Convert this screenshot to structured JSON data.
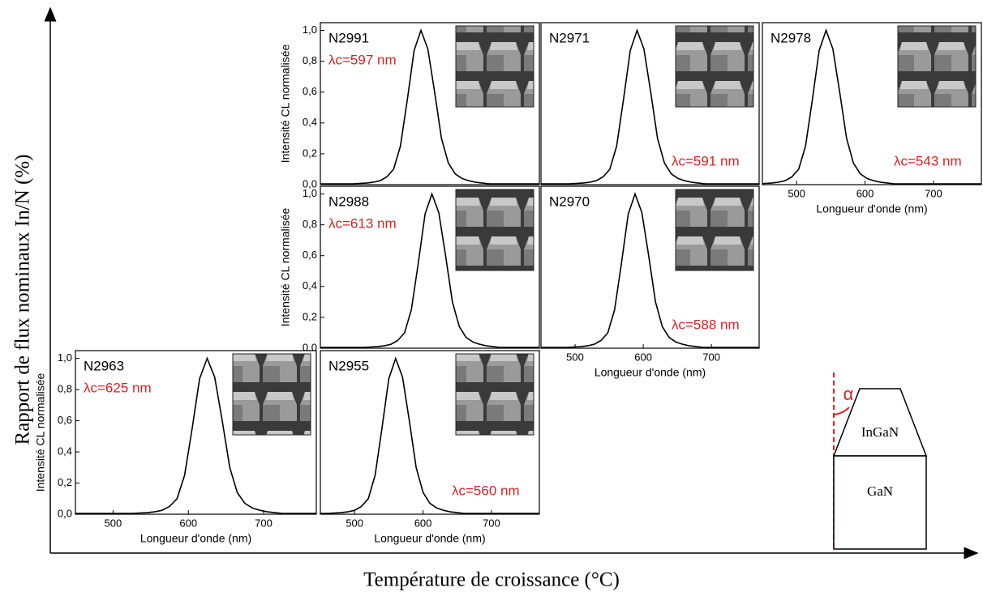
{
  "figure": {
    "x_label": "Température de croissance (°C)",
    "y_label": "Rapport de flux nominaux In/N (%)"
  },
  "diagram": {
    "top_label": "InGaN",
    "bottom_label": "GaN",
    "angle_label": "α"
  },
  "chart_data": [
    {
      "type": "line",
      "title": "N2991",
      "annotation": "λc=597 nm",
      "y_label": "Intensité CL normalisée",
      "xlim": [
        450,
        770
      ],
      "ylim": [
        0,
        1.05
      ],
      "yticks": [
        {
          "value": 0,
          "label": "0,0"
        },
        {
          "value": 0.2,
          "label": "0,2"
        },
        {
          "value": 0.4,
          "label": "0,4"
        },
        {
          "value": 0.6,
          "label": "0,6"
        },
        {
          "value": 0.8,
          "label": "0,8"
        },
        {
          "value": 1,
          "label": "1,0"
        }
      ],
      "series": [
        {
          "color": "#000000",
          "x": [
            450,
            497,
            507,
            517,
            527,
            537,
            547,
            557,
            567,
            577,
            587,
            597,
            607,
            617,
            627,
            637,
            647,
            657,
            667,
            677,
            687,
            697,
            707,
            717,
            770
          ],
          "values": [
            0.005,
            0.005,
            0.008,
            0.01,
            0.015,
            0.025,
            0.05,
            0.1,
            0.25,
            0.55,
            0.87,
            1,
            0.88,
            0.6,
            0.3,
            0.14,
            0.07,
            0.04,
            0.025,
            0.015,
            0.01,
            0.005,
            0.005,
            0.005,
            0.005
          ]
        }
      ]
    },
    {
      "type": "line",
      "title": "N2971",
      "annotation": "λc=591 nm",
      "xlim": [
        450,
        770
      ],
      "ylim": [
        0,
        1.05
      ],
      "series": [
        {
          "color": "#000000",
          "x": [
            450,
            491,
            501,
            511,
            521,
            531,
            541,
            551,
            561,
            571,
            581,
            591,
            601,
            611,
            621,
            631,
            641,
            651,
            661,
            671,
            681,
            691,
            701,
            711,
            770
          ],
          "values": [
            0.005,
            0.005,
            0.008,
            0.01,
            0.015,
            0.025,
            0.05,
            0.1,
            0.25,
            0.55,
            0.87,
            1,
            0.88,
            0.6,
            0.3,
            0.14,
            0.07,
            0.04,
            0.025,
            0.015,
            0.01,
            0.005,
            0.005,
            0.005,
            0.005
          ]
        }
      ]
    },
    {
      "type": "line",
      "title": "N2978",
      "annotation": "λc=543 nm",
      "x_label": "Longueur d'onde (nm)",
      "xlim": [
        450,
        770
      ],
      "ylim": [
        0,
        1.05
      ],
      "xticks": [
        500,
        600,
        700
      ],
      "series": [
        {
          "color": "#000000",
          "x": [
            450,
            453,
            463,
            473,
            483,
            493,
            503,
            513,
            523,
            533,
            543,
            553,
            563,
            573,
            583,
            593,
            603,
            613,
            623,
            633,
            643,
            653,
            663,
            770
          ],
          "values": [
            0.005,
            0.008,
            0.01,
            0.015,
            0.025,
            0.05,
            0.1,
            0.25,
            0.55,
            0.87,
            1,
            0.88,
            0.6,
            0.3,
            0.14,
            0.07,
            0.04,
            0.025,
            0.015,
            0.01,
            0.005,
            0.005,
            0.005,
            0.005
          ]
        }
      ]
    },
    {
      "type": "line",
      "title": "N2988",
      "annotation": "λc=613 nm",
      "y_label": "Intensité CL normalisée",
      "xlim": [
        450,
        770
      ],
      "ylim": [
        0,
        1.05
      ],
      "yticks": [
        {
          "value": 0,
          "label": "0,0"
        },
        {
          "value": 0.2,
          "label": "0,2"
        },
        {
          "value": 0.4,
          "label": "0,4"
        },
        {
          "value": 0.6,
          "label": "0,6"
        },
        {
          "value": 0.8,
          "label": "0,8"
        },
        {
          "value": 1,
          "label": "1,0"
        }
      ],
      "series": [
        {
          "color": "#000000",
          "x": [
            450,
            513,
            523,
            533,
            543,
            553,
            563,
            573,
            583,
            593,
            603,
            613,
            623,
            633,
            643,
            653,
            663,
            673,
            683,
            693,
            703,
            713,
            723,
            733,
            770
          ],
          "values": [
            0.005,
            0.005,
            0.008,
            0.01,
            0.015,
            0.025,
            0.05,
            0.1,
            0.25,
            0.55,
            0.87,
            1,
            0.88,
            0.6,
            0.3,
            0.14,
            0.07,
            0.04,
            0.025,
            0.015,
            0.01,
            0.005,
            0.005,
            0.005,
            0.005
          ]
        }
      ]
    },
    {
      "type": "line",
      "title": "N2970",
      "annotation": "λc=588 nm",
      "x_label": "Longueur d'onde (nm)",
      "xlim": [
        450,
        770
      ],
      "ylim": [
        0,
        1.05
      ],
      "xticks": [
        500,
        600,
        700
      ],
      "series": [
        {
          "color": "#000000",
          "x": [
            450,
            488,
            498,
            508,
            518,
            528,
            538,
            548,
            558,
            568,
            578,
            588,
            598,
            608,
            618,
            628,
            638,
            648,
            658,
            668,
            678,
            688,
            698,
            708,
            770
          ],
          "values": [
            0.005,
            0.005,
            0.008,
            0.01,
            0.015,
            0.025,
            0.05,
            0.1,
            0.25,
            0.55,
            0.87,
            1,
            0.88,
            0.6,
            0.3,
            0.14,
            0.07,
            0.04,
            0.025,
            0.015,
            0.01,
            0.005,
            0.005,
            0.005,
            0.005
          ]
        }
      ]
    },
    {
      "type": "line",
      "title": "N2963",
      "annotation": "λc=625 nm",
      "y_label": "Intensité CL normalisée",
      "x_label": "Longueur d'onde (nm)",
      "xlim": [
        450,
        770
      ],
      "ylim": [
        0,
        1.05
      ],
      "xticks": [
        500,
        600,
        700
      ],
      "yticks": [
        {
          "value": 0,
          "label": "0,0"
        },
        {
          "value": 0.2,
          "label": "0,2"
        },
        {
          "value": 0.4,
          "label": "0,4"
        },
        {
          "value": 0.6,
          "label": "0,6"
        },
        {
          "value": 0.8,
          "label": "0,8"
        },
        {
          "value": 1,
          "label": "1,0"
        }
      ],
      "series": [
        {
          "color": "#000000",
          "x": [
            450,
            525,
            535,
            545,
            555,
            565,
            575,
            585,
            595,
            605,
            615,
            625,
            635,
            645,
            655,
            665,
            675,
            685,
            695,
            705,
            715,
            725,
            735,
            745,
            770
          ],
          "values": [
            0.005,
            0.005,
            0.008,
            0.01,
            0.015,
            0.025,
            0.05,
            0.1,
            0.25,
            0.55,
            0.87,
            1,
            0.88,
            0.6,
            0.3,
            0.14,
            0.07,
            0.04,
            0.025,
            0.015,
            0.01,
            0.005,
            0.005,
            0.005,
            0.005
          ]
        }
      ]
    },
    {
      "type": "line",
      "title": "N2955",
      "annotation": "λc=560 nm",
      "x_label": "Longueur d'onde (nm)",
      "xlim": [
        450,
        770
      ],
      "ylim": [
        0,
        1.05
      ],
      "xticks": [
        500,
        600,
        700
      ],
      "series": [
        {
          "color": "#000000",
          "x": [
            450,
            460,
            470,
            480,
            490,
            500,
            510,
            520,
            530,
            540,
            550,
            560,
            570,
            580,
            590,
            600,
            610,
            620,
            630,
            640,
            650,
            660,
            670,
            680,
            770
          ],
          "values": [
            0.005,
            0.005,
            0.008,
            0.01,
            0.015,
            0.025,
            0.05,
            0.1,
            0.25,
            0.55,
            0.87,
            1,
            0.88,
            0.6,
            0.3,
            0.14,
            0.07,
            0.04,
            0.025,
            0.015,
            0.01,
            0.005,
            0.005,
            0.005,
            0.005
          ]
        }
      ]
    }
  ]
}
